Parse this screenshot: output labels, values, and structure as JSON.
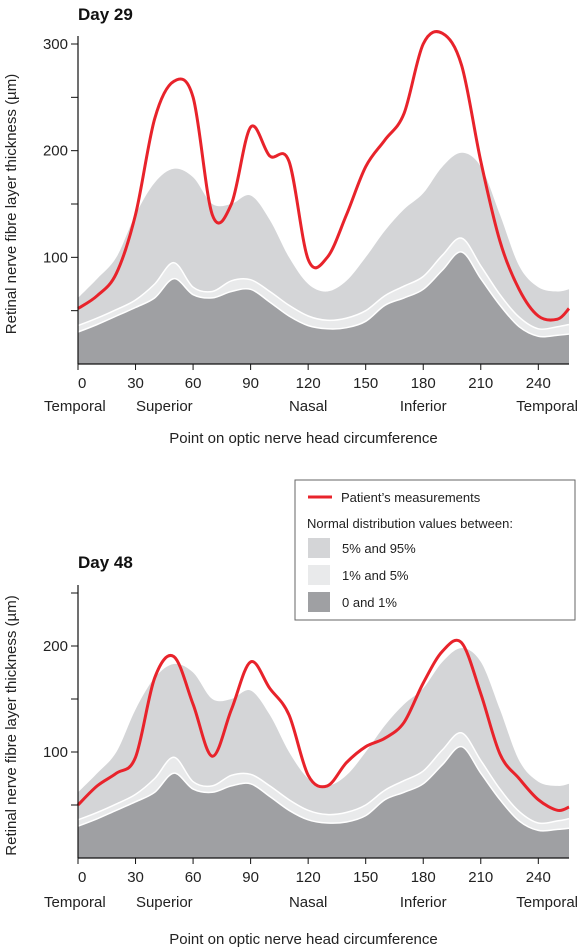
{
  "chart_data": [
    {
      "type": "area",
      "title": "Day 29",
      "xlabel": "Point on optic nerve head circumference",
      "ylabel": "Retinal nerve fibre layer thickness (µm)",
      "xlim": [
        0,
        256
      ],
      "ylim": [
        0,
        300
      ],
      "xticks": [
        0,
        30,
        60,
        90,
        120,
        150,
        180,
        210,
        240
      ],
      "yticks": [
        100,
        200,
        300
      ],
      "region_labels": [
        "Temporal",
        "Superior",
        "Nasal",
        "Inferior",
        "Temporal"
      ],
      "x": [
        0,
        10,
        20,
        30,
        40,
        50,
        60,
        70,
        80,
        90,
        100,
        110,
        120,
        130,
        140,
        150,
        160,
        170,
        180,
        190,
        200,
        210,
        220,
        230,
        240,
        250,
        256
      ],
      "series": [
        {
          "name": "0 and 1%",
          "values": [
            30,
            37,
            45,
            53,
            62,
            80,
            65,
            62,
            68,
            70,
            58,
            45,
            36,
            33,
            34,
            40,
            55,
            62,
            70,
            88,
            105,
            80,
            55,
            35,
            26,
            27,
            28
          ]
        },
        {
          "name": "1% and 5%",
          "values": [
            36,
            43,
            51,
            60,
            75,
            95,
            72,
            68,
            78,
            79,
            68,
            55,
            45,
            41,
            43,
            50,
            64,
            73,
            82,
            102,
            118,
            92,
            65,
            44,
            33,
            35,
            37
          ]
        },
        {
          "name": "5% and 95%",
          "values": [
            62,
            80,
            100,
            140,
            170,
            183,
            175,
            150,
            150,
            158,
            135,
            100,
            75,
            68,
            78,
            100,
            125,
            145,
            160,
            185,
            198,
            185,
            140,
            92,
            72,
            68,
            70
          ]
        },
        {
          "name": "Patient’s measurements",
          "values": [
            52,
            64,
            85,
            140,
            230,
            265,
            250,
            140,
            150,
            222,
            195,
            190,
            98,
            100,
            140,
            185,
            210,
            235,
            300,
            310,
            280,
            190,
            115,
            70,
            45,
            42,
            52
          ]
        }
      ]
    },
    {
      "type": "area",
      "title": "Day 48",
      "xlabel": "Point on optic nerve head circumference",
      "ylabel": "Retinal nerve fibre layer thickness (µm)",
      "xlim": [
        0,
        256
      ],
      "ylim": [
        0,
        250
      ],
      "xticks": [
        0,
        30,
        60,
        90,
        120,
        150,
        180,
        210,
        240
      ],
      "yticks": [
        100,
        200
      ],
      "region_labels": [
        "Temporal",
        "Superior",
        "Nasal",
        "Inferior",
        "Temporal"
      ],
      "x": [
        0,
        10,
        20,
        30,
        40,
        50,
        60,
        70,
        80,
        90,
        100,
        110,
        120,
        130,
        140,
        150,
        160,
        170,
        180,
        190,
        200,
        210,
        220,
        230,
        240,
        250,
        256
      ],
      "series": [
        {
          "name": "0 and 1%",
          "values": [
            30,
            37,
            45,
            53,
            62,
            80,
            65,
            62,
            68,
            70,
            58,
            45,
            36,
            33,
            34,
            40,
            55,
            62,
            70,
            88,
            105,
            80,
            55,
            35,
            26,
            27,
            28
          ]
        },
        {
          "name": "1% and 5%",
          "values": [
            36,
            43,
            51,
            60,
            75,
            95,
            72,
            68,
            78,
            79,
            68,
            55,
            45,
            41,
            43,
            50,
            64,
            73,
            82,
            102,
            118,
            92,
            65,
            44,
            33,
            35,
            37
          ]
        },
        {
          "name": "5% and 95%",
          "values": [
            62,
            80,
            100,
            140,
            170,
            183,
            175,
            150,
            150,
            158,
            135,
            100,
            75,
            68,
            78,
            100,
            125,
            145,
            160,
            185,
            198,
            185,
            140,
            92,
            72,
            68,
            70
          ]
        },
        {
          "name": "Patient’s measurements",
          "values": [
            50,
            68,
            80,
            95,
            170,
            190,
            145,
            96,
            140,
            185,
            160,
            135,
            78,
            68,
            90,
            105,
            113,
            128,
            165,
            195,
            203,
            155,
            98,
            75,
            55,
            45,
            48
          ]
        }
      ]
    }
  ],
  "legend": {
    "line_label": "Patient’s measurements",
    "heading": "Normal distribution values between:",
    "items": [
      {
        "label": "5% and 95%",
        "color": "#d4d5d7"
      },
      {
        "label": "1% and 5%",
        "color": "#e9eaeb"
      },
      {
        "label": "0 and 1%",
        "color": "#9fa0a3"
      }
    ],
    "line_color": "#e8232b"
  },
  "colors": {
    "band_outer": "#d4d5d7",
    "band_mid": "#e9eaeb",
    "band_inner": "#9fa0a3",
    "patient": "#e8232b"
  }
}
